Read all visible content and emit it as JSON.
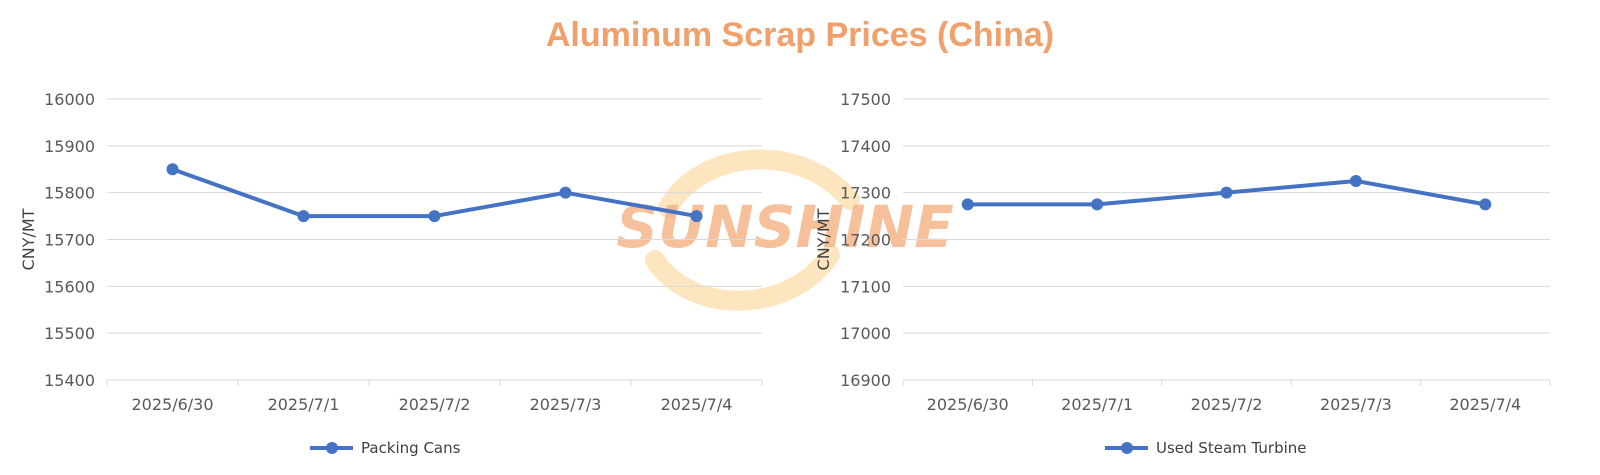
{
  "title": "Aluminum Scrap Prices (China)",
  "colors": {
    "title": "#f0a06a",
    "series": "#4472c4",
    "watermark_text": "#f4b183",
    "watermark_ring": "#fde2b4"
  },
  "watermark": {
    "text": "SUNSHINE"
  },
  "chart_data": [
    {
      "type": "line",
      "categories": [
        "2025/6/30",
        "2025/7/1",
        "2025/7/2",
        "2025/7/3",
        "2025/7/4"
      ],
      "series": [
        {
          "name": "Packing Cans",
          "values": [
            15850,
            15750,
            15750,
            15800,
            15750
          ]
        }
      ],
      "ylabel": "CNY/MT",
      "ylim": [
        15400,
        16000
      ],
      "yticks": [
        "15400",
        "15500",
        "15600",
        "15700",
        "15800",
        "15900",
        "16000"
      ],
      "grid": true,
      "legend": "bottom"
    },
    {
      "type": "line",
      "categories": [
        "2025/6/30",
        "2025/7/1",
        "2025/7/2",
        "2025/7/3",
        "2025/7/4"
      ],
      "series": [
        {
          "name": "Used Steam Turbine",
          "values": [
            17275,
            17275,
            17300,
            17325,
            17275
          ]
        }
      ],
      "ylabel": "CNY/MT",
      "ylim": [
        16900,
        17500
      ],
      "yticks": [
        "16900",
        "17000",
        "17100",
        "17200",
        "17300",
        "17400",
        "17500"
      ],
      "grid": true,
      "legend": "bottom"
    }
  ]
}
